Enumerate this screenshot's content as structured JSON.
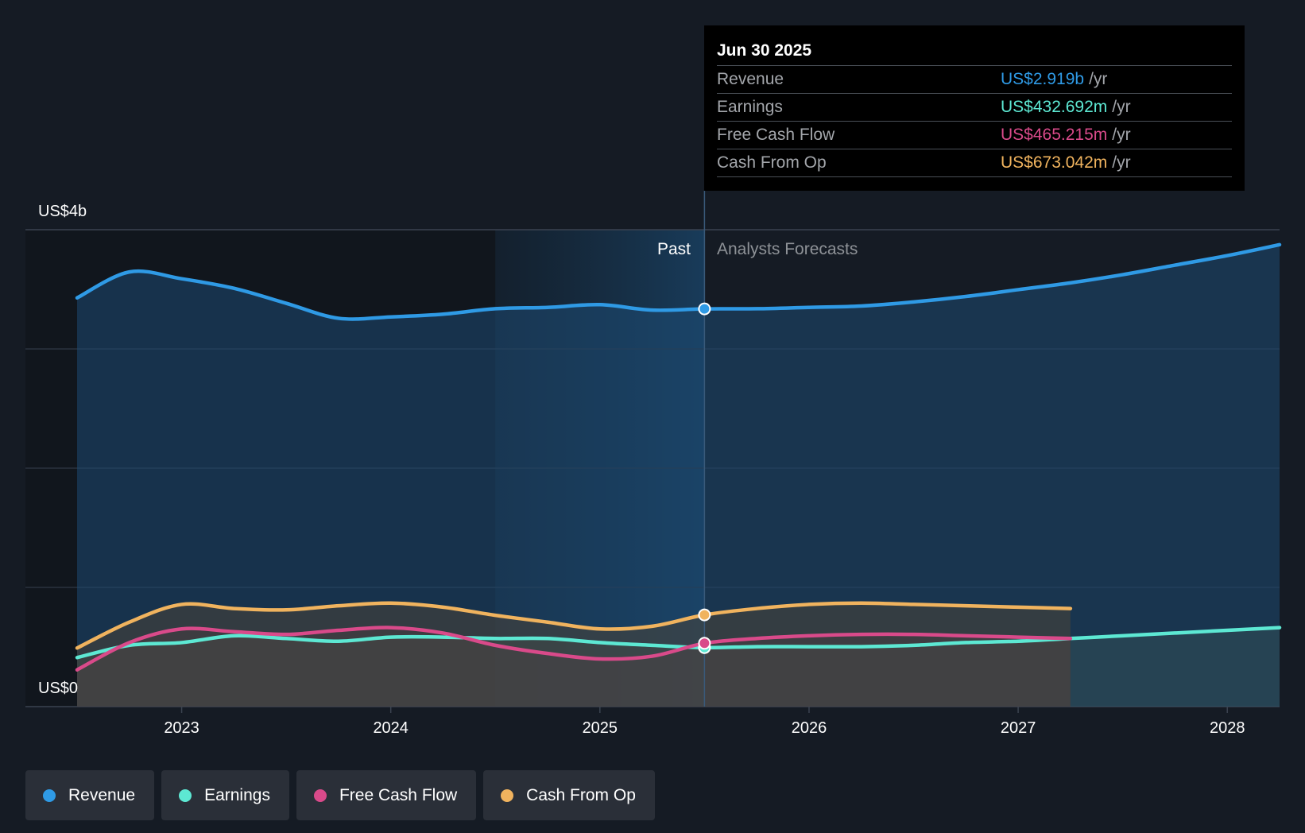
{
  "tooltip": {
    "date": "Jun 30 2025",
    "rows": [
      {
        "label": "Revenue",
        "value": "US$2.919b",
        "unit": "/yr",
        "color": "#2f9ae5"
      },
      {
        "label": "Earnings",
        "value": "US$432.692m",
        "unit": "/yr",
        "color": "#5de8d3"
      },
      {
        "label": "Free Cash Flow",
        "value": "US$465.215m",
        "unit": "/yr",
        "color": "#d94a8a"
      },
      {
        "label": "Cash From Op",
        "value": "US$673.042m",
        "unit": "/yr",
        "color": "#f0b35e"
      }
    ]
  },
  "legend": [
    {
      "label": "Revenue",
      "color": "#2f9ae5"
    },
    {
      "label": "Earnings",
      "color": "#5de8d3"
    },
    {
      "label": "Free Cash Flow",
      "color": "#d94a8a"
    },
    {
      "label": "Cash From Op",
      "color": "#f0b35e"
    }
  ],
  "chart_data": {
    "type": "area",
    "y_unit_labels": {
      "top": "US$4b",
      "bottom": "US$0"
    },
    "ylim": [
      0,
      3.5
    ],
    "xlim": [
      2022.5,
      2028.25
    ],
    "x_ticks": [
      "2023",
      "2024",
      "2025",
      "2026",
      "2027",
      "2028"
    ],
    "past_label": "Past",
    "forecast_label": "Analysts Forecasts",
    "divider_x": 2025.5,
    "highlight_start_x": 2024.5,
    "series": [
      {
        "name": "Revenue",
        "color": "#2f9ae5",
        "points": [
          [
            2022.5,
            3.0
          ],
          [
            2022.75,
            3.19
          ],
          [
            2023.0,
            3.14
          ],
          [
            2023.25,
            3.07
          ],
          [
            2023.5,
            2.96
          ],
          [
            2023.75,
            2.85
          ],
          [
            2024.0,
            2.86
          ],
          [
            2024.25,
            2.88
          ],
          [
            2024.5,
            2.92
          ],
          [
            2024.75,
            2.93
          ],
          [
            2025.0,
            2.95
          ],
          [
            2025.25,
            2.91
          ],
          [
            2025.5,
            2.919
          ],
          [
            2025.75,
            2.92
          ],
          [
            2026.0,
            2.93
          ],
          [
            2026.25,
            2.94
          ],
          [
            2026.5,
            2.97
          ],
          [
            2026.75,
            3.01
          ],
          [
            2027.0,
            3.06
          ],
          [
            2027.25,
            3.11
          ],
          [
            2027.5,
            3.17
          ],
          [
            2027.75,
            3.24
          ],
          [
            2028.0,
            3.31
          ],
          [
            2028.25,
            3.39
          ]
        ]
      },
      {
        "name": "Earnings",
        "color": "#5de8d3",
        "points": [
          [
            2022.5,
            0.36
          ],
          [
            2022.75,
            0.45
          ],
          [
            2023.0,
            0.47
          ],
          [
            2023.25,
            0.52
          ],
          [
            2023.5,
            0.5
          ],
          [
            2023.75,
            0.48
          ],
          [
            2024.0,
            0.51
          ],
          [
            2024.25,
            0.51
          ],
          [
            2024.5,
            0.5
          ],
          [
            2024.75,
            0.5
          ],
          [
            2025.0,
            0.47
          ],
          [
            2025.25,
            0.45
          ],
          [
            2025.5,
            0.433
          ],
          [
            2025.75,
            0.44
          ],
          [
            2026.0,
            0.44
          ],
          [
            2026.25,
            0.44
          ],
          [
            2026.5,
            0.45
          ],
          [
            2026.75,
            0.47
          ],
          [
            2027.0,
            0.48
          ],
          [
            2027.25,
            0.5
          ],
          [
            2027.5,
            0.52
          ],
          [
            2027.75,
            0.54
          ],
          [
            2028.0,
            0.56
          ],
          [
            2028.25,
            0.58
          ]
        ]
      },
      {
        "name": "Free Cash Flow",
        "color": "#d94a8a",
        "points": [
          [
            2022.5,
            0.27
          ],
          [
            2022.75,
            0.47
          ],
          [
            2023.0,
            0.57
          ],
          [
            2023.25,
            0.55
          ],
          [
            2023.5,
            0.53
          ],
          [
            2023.75,
            0.56
          ],
          [
            2024.0,
            0.58
          ],
          [
            2024.25,
            0.54
          ],
          [
            2024.5,
            0.45
          ],
          [
            2024.75,
            0.39
          ],
          [
            2025.0,
            0.35
          ],
          [
            2025.25,
            0.37
          ],
          [
            2025.5,
            0.465
          ],
          [
            2025.75,
            0.5
          ],
          [
            2026.0,
            0.52
          ],
          [
            2026.25,
            0.53
          ],
          [
            2026.5,
            0.53
          ],
          [
            2026.75,
            0.52
          ],
          [
            2027.0,
            0.51
          ],
          [
            2027.25,
            0.5
          ]
        ]
      },
      {
        "name": "Cash From Op",
        "color": "#f0b35e",
        "points": [
          [
            2022.5,
            0.43
          ],
          [
            2022.75,
            0.62
          ],
          [
            2023.0,
            0.75
          ],
          [
            2023.25,
            0.72
          ],
          [
            2023.5,
            0.71
          ],
          [
            2023.75,
            0.74
          ],
          [
            2024.0,
            0.76
          ],
          [
            2024.25,
            0.73
          ],
          [
            2024.5,
            0.67
          ],
          [
            2024.75,
            0.62
          ],
          [
            2025.0,
            0.57
          ],
          [
            2025.25,
            0.59
          ],
          [
            2025.5,
            0.673
          ],
          [
            2025.75,
            0.72
          ],
          [
            2026.0,
            0.75
          ],
          [
            2026.25,
            0.76
          ],
          [
            2026.5,
            0.75
          ],
          [
            2026.75,
            0.74
          ],
          [
            2027.0,
            0.73
          ],
          [
            2027.25,
            0.72
          ]
        ]
      }
    ],
    "highlight_x": 2025.5
  }
}
